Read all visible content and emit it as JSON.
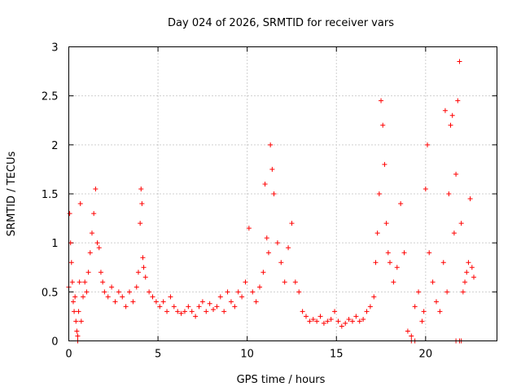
{
  "chart_data": {
    "type": "scatter",
    "title": "Day 024 of 2026, SRMTID for receiver vars",
    "xlabel": "GPS time / hours",
    "ylabel": "SRMTID / TECUs",
    "xlim": [
      0,
      24
    ],
    "ylim": [
      0,
      3
    ],
    "xticks": [
      0,
      5,
      10,
      15,
      20
    ],
    "xtick_labels": [
      "0",
      "5",
      "10",
      "15",
      "20"
    ],
    "yticks": [
      0,
      0.5,
      1,
      1.5,
      2,
      2.5,
      3
    ],
    "ytick_labels": [
      "0",
      "0.5",
      "1",
      "1.5",
      "2",
      "2.5",
      "3"
    ],
    "grid": true,
    "marker": "+",
    "series": [
      {
        "name": "SRMTID",
        "color": "#ff0000",
        "x": [
          0.0,
          0.05,
          0.1,
          0.15,
          0.2,
          0.25,
          0.3,
          0.35,
          0.4,
          0.45,
          0.5,
          0.55,
          0.6,
          0.65,
          0.7,
          0.8,
          0.9,
          1.0,
          1.1,
          1.2,
          1.3,
          1.4,
          1.5,
          1.6,
          1.7,
          1.8,
          1.9,
          2.0,
          2.2,
          2.4,
          2.6,
          2.8,
          3.0,
          3.2,
          3.4,
          3.6,
          3.8,
          3.9,
          4.0,
          4.05,
          4.1,
          4.15,
          4.2,
          4.3,
          4.5,
          4.7,
          4.9,
          5.1,
          5.3,
          5.5,
          5.7,
          5.9,
          6.1,
          6.3,
          6.5,
          6.7,
          6.9,
          7.1,
          7.3,
          7.5,
          7.7,
          7.9,
          8.1,
          8.3,
          8.5,
          8.7,
          8.9,
          9.1,
          9.3,
          9.5,
          9.7,
          9.9,
          10.1,
          10.3,
          10.5,
          10.7,
          10.9,
          11.0,
          11.1,
          11.2,
          11.3,
          11.4,
          11.5,
          11.7,
          11.9,
          12.1,
          12.3,
          12.5,
          12.7,
          12.9,
          13.1,
          13.3,
          13.5,
          13.7,
          13.9,
          14.1,
          14.3,
          14.5,
          14.7,
          14.9,
          15.1,
          15.3,
          15.5,
          15.7,
          15.9,
          16.1,
          16.3,
          16.5,
          16.7,
          16.9,
          17.1,
          17.2,
          17.3,
          17.4,
          17.5,
          17.6,
          17.7,
          17.8,
          17.9,
          18.0,
          18.2,
          18.4,
          18.6,
          18.8,
          19.0,
          19.2,
          19.4,
          19.6,
          19.8,
          19.9,
          20.0,
          20.1,
          20.2,
          20.4,
          20.6,
          20.8,
          21.0,
          21.1,
          21.2,
          21.3,
          21.4,
          21.5,
          21.6,
          21.7,
          21.8,
          21.9,
          22.0,
          22.1,
          22.2,
          22.3,
          22.4,
          22.5,
          22.6,
          22.7
        ],
        "y": [
          0.55,
          1.3,
          1.0,
          0.8,
          0.6,
          0.4,
          0.3,
          0.45,
          0.2,
          0.1,
          0.05,
          0.3,
          0.6,
          1.4,
          0.2,
          0.45,
          0.6,
          0.5,
          0.7,
          0.9,
          1.1,
          1.3,
          1.55,
          1.0,
          0.95,
          0.7,
          0.6,
          0.5,
          0.45,
          0.55,
          0.4,
          0.5,
          0.45,
          0.35,
          0.5,
          0.4,
          0.55,
          0.7,
          1.2,
          1.55,
          1.4,
          0.85,
          0.75,
          0.65,
          0.5,
          0.45,
          0.4,
          0.35,
          0.4,
          0.3,
          0.45,
          0.35,
          0.3,
          0.28,
          0.3,
          0.35,
          0.3,
          0.25,
          0.35,
          0.4,
          0.3,
          0.38,
          0.32,
          0.35,
          0.45,
          0.3,
          0.5,
          0.4,
          0.35,
          0.5,
          0.45,
          0.6,
          1.15,
          0.5,
          0.4,
          0.55,
          0.7,
          1.6,
          1.05,
          0.9,
          2.0,
          1.75,
          1.5,
          1.0,
          0.8,
          0.6,
          0.95,
          1.2,
          0.6,
          0.5,
          0.3,
          0.25,
          0.2,
          0.22,
          0.2,
          0.25,
          0.18,
          0.2,
          0.22,
          0.3,
          0.2,
          0.15,
          0.18,
          0.22,
          0.2,
          0.25,
          0.2,
          0.22,
          0.3,
          0.35,
          0.45,
          0.8,
          1.1,
          1.5,
          2.45,
          2.2,
          1.8,
          1.2,
          0.9,
          0.8,
          0.6,
          0.75,
          1.4,
          0.9,
          0.1,
          0.05,
          0.35,
          0.5,
          0.2,
          0.3,
          1.55,
          2.0,
          0.9,
          0.6,
          0.4,
          0.3,
          0.8,
          2.35,
          0.5,
          1.5,
          2.2,
          2.3,
          1.1,
          1.7,
          2.45,
          2.85,
          1.2,
          0.5,
          0.6,
          0.7,
          0.8,
          1.45,
          0.75,
          0.65
        ]
      }
    ],
    "zero_markers_x": [
      0.5,
      19.2,
      19.4,
      21.7,
      21.9,
      22.0
    ]
  }
}
